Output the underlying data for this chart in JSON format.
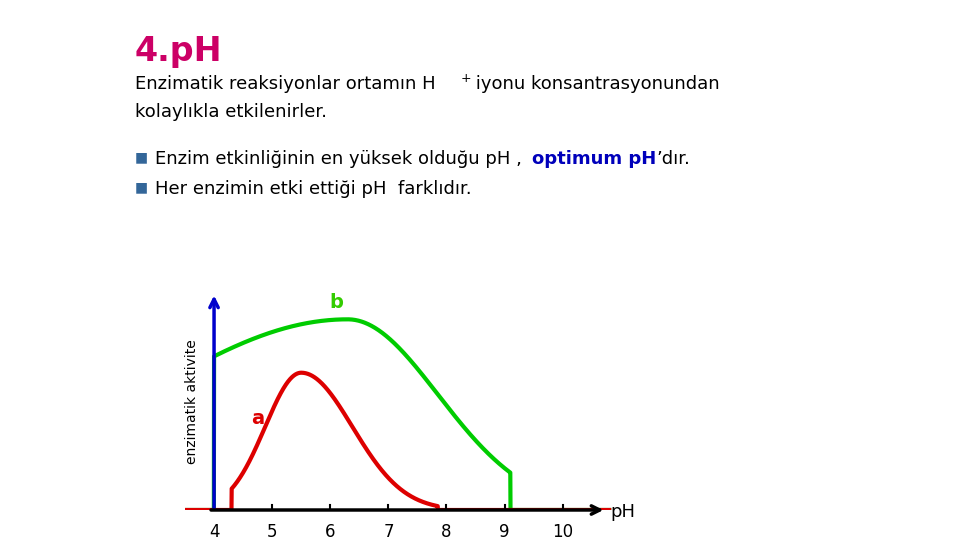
{
  "title": "4.pH",
  "title_color": "#CC0066",
  "bg_color": "#FFFFFF",
  "text_color": "#000000",
  "ylabel": "enzimatik aktivite",
  "xlabel": "pH",
  "xticks": [
    4,
    5,
    6,
    7,
    8,
    9,
    10
  ],
  "xlim": [
    3.5,
    10.9
  ],
  "ylim": [
    0,
    1.18
  ],
  "curve_a_color": "#DD0000",
  "curve_b_color": "#00CC00",
  "blue_axis_color": "#0000CC",
  "black_axis_color": "#000000",
  "label_a": "a",
  "label_b": "b",
  "label_color_a": "#DD0000",
  "label_color_b": "#33CC00",
  "bullet_color": "#336699",
  "optimum_color": "#0000BB",
  "font_size_title": 24,
  "font_size_body": 13,
  "font_size_axis": 12
}
